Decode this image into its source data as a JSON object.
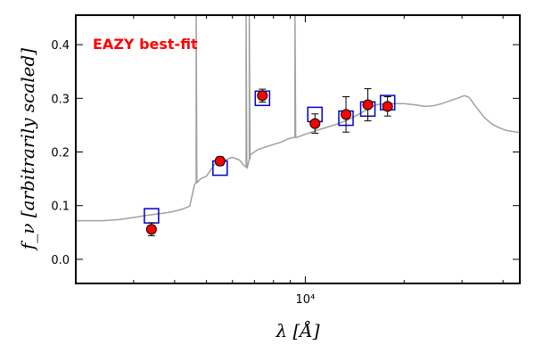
{
  "colors": {
    "annotation": "#ff0000",
    "model_line": "#a0a0a0",
    "photometry_fill": "#ff0000",
    "model_box": "#0000cc",
    "axis": "#000000"
  },
  "chart_data": {
    "type": "scatter",
    "title": "",
    "annotation": "EAZY best-fit",
    "xlabel": "λ [Å]",
    "ylabel": "f_ν [arbitrarily scaled]",
    "x_scale": "log",
    "xlim": [
      2000,
      45000
    ],
    "ylim": [
      -0.045,
      0.455
    ],
    "x_ticks": [
      {
        "value": 10000,
        "label": "10⁴"
      }
    ],
    "y_ticks": [
      {
        "value": 0.0,
        "label": "0.0"
      },
      {
        "value": 0.1,
        "label": "0.1"
      },
      {
        "value": 0.2,
        "label": "0.2"
      },
      {
        "value": 0.3,
        "label": "0.3"
      },
      {
        "value": 0.4,
        "label": "0.4"
      }
    ],
    "grid": false,
    "series": [
      {
        "type": "line",
        "points": [
          [
            2000,
            0.072
          ],
          [
            2400,
            0.072
          ],
          [
            2700,
            0.074
          ],
          [
            3000,
            0.078
          ],
          [
            3300,
            0.082
          ],
          [
            3600,
            0.085
          ],
          [
            3900,
            0.088
          ],
          [
            4200,
            0.093
          ],
          [
            4450,
            0.099
          ],
          [
            4600,
            0.14
          ],
          [
            4800,
            0.15
          ],
          [
            5000,
            0.155
          ],
          [
            5200,
            0.17
          ],
          [
            5400,
            0.185
          ],
          [
            5700,
            0.185
          ],
          [
            6000,
            0.19
          ],
          [
            6300,
            0.185
          ],
          [
            6500,
            0.175
          ],
          [
            6650,
            0.17
          ],
          [
            6800,
            0.195
          ],
          [
            7200,
            0.205
          ],
          [
            7800,
            0.212
          ],
          [
            8400,
            0.218
          ],
          [
            9000,
            0.226
          ],
          [
            9500,
            0.228
          ],
          [
            10000,
            0.233
          ],
          [
            10800,
            0.24
          ],
          [
            11500,
            0.245
          ],
          [
            12500,
            0.252
          ],
          [
            13500,
            0.26
          ],
          [
            14500,
            0.27
          ],
          [
            15500,
            0.28
          ],
          [
            16500,
            0.288
          ],
          [
            17500,
            0.29
          ],
          [
            18500,
            0.29
          ],
          [
            20000,
            0.29
          ],
          [
            21500,
            0.288
          ],
          [
            23000,
            0.285
          ],
          [
            24500,
            0.286
          ],
          [
            26000,
            0.29
          ],
          [
            27500,
            0.295
          ],
          [
            29000,
            0.3
          ],
          [
            30500,
            0.305
          ],
          [
            31500,
            0.302
          ],
          [
            33000,
            0.285
          ],
          [
            35000,
            0.265
          ],
          [
            37000,
            0.252
          ],
          [
            39000,
            0.245
          ],
          [
            41000,
            0.24
          ],
          [
            43000,
            0.238
          ],
          [
            45000,
            0.236
          ]
        ],
        "emission_lines": [
          {
            "x": 4650,
            "peak": 0.455
          },
          {
            "x": 6600,
            "peak": 0.455
          },
          {
            "x": 6750,
            "peak": 0.455
          },
          {
            "x": 9300,
            "peak": 0.455
          }
        ]
      },
      {
        "type": "scatter",
        "marker": "circle",
        "points": [
          {
            "x": 3400,
            "y": 0.056,
            "err": 0.012
          },
          {
            "x": 5500,
            "y": 0.183,
            "err": 0.008
          },
          {
            "x": 7400,
            "y": 0.305,
            "err": 0.012
          },
          {
            "x": 10700,
            "y": 0.253,
            "err": 0.018
          },
          {
            "x": 13300,
            "y": 0.27,
            "err": 0.033
          },
          {
            "x": 15500,
            "y": 0.288,
            "err": 0.03
          },
          {
            "x": 17800,
            "y": 0.285,
            "err": 0.018
          }
        ]
      },
      {
        "type": "scatter",
        "marker": "open-square",
        "points": [
          {
            "x": 3400,
            "y": 0.081
          },
          {
            "x": 5500,
            "y": 0.17
          },
          {
            "x": 7400,
            "y": 0.3
          },
          {
            "x": 10700,
            "y": 0.27
          },
          {
            "x": 13300,
            "y": 0.263
          },
          {
            "x": 15500,
            "y": 0.28
          },
          {
            "x": 17800,
            "y": 0.292
          }
        ]
      }
    ]
  }
}
